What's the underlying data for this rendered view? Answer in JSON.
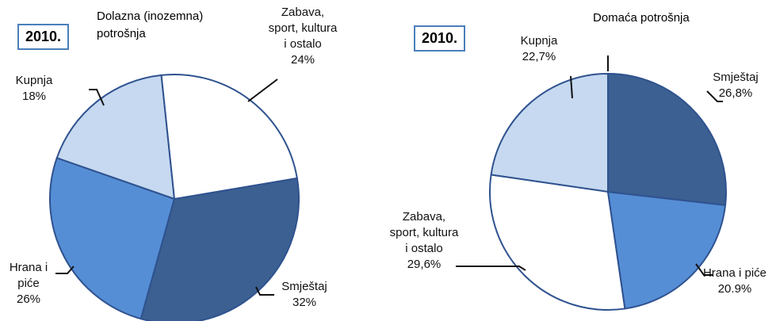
{
  "chart_data": [
    {
      "type": "pie",
      "badge": "2010.",
      "title": "Dolazna (inozemna) potrošnja",
      "categories": [
        "Zabava, sport, kultura i ostalo",
        "Smještaj",
        "Hrana i piće",
        "Kupnja"
      ],
      "values": [
        24,
        32,
        26,
        18
      ],
      "value_labels": [
        "24%",
        "32%",
        "26%",
        "18%"
      ],
      "colors": [
        "#ffffff",
        "#3b6091",
        "#558ed5",
        "#c6d9f0"
      ],
      "start_angle": -6
    },
    {
      "type": "pie",
      "badge": "2010.",
      "title": "Domaća potrošnja",
      "categories": [
        "Smještaj",
        "Hrana i piće",
        "Zabava, sport, kultura i ostalo",
        "Kupnja"
      ],
      "values": [
        26.8,
        20.9,
        29.6,
        22.7
      ],
      "value_labels": [
        "26,8%",
        "20.9%",
        "29,6%",
        "22,7%"
      ],
      "colors": [
        "#3b6091",
        "#558ed5",
        "#ffffff",
        "#c6d9f0"
      ],
      "start_angle": 0
    }
  ]
}
